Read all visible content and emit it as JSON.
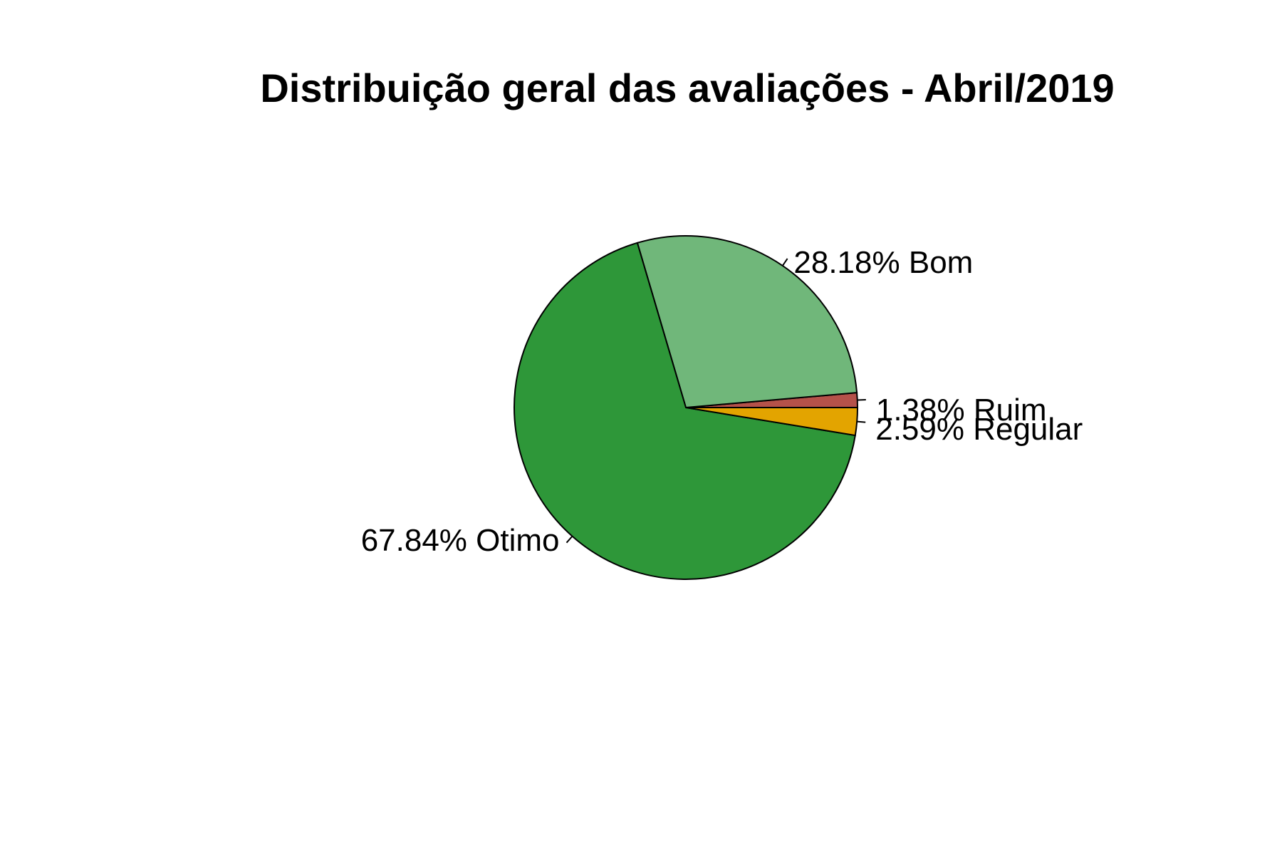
{
  "chart_data": {
    "type": "pie",
    "title": "Distribuição geral das avaliações - Abril/2019",
    "slices": [
      {
        "label": "Ruim",
        "value": 1.38,
        "text": "1.38% Ruim",
        "color": "#b5524a"
      },
      {
        "label": "Bom",
        "value": 28.18,
        "text": "28.18% Bom",
        "color": "#70b77a"
      },
      {
        "label": "Otimo",
        "value": 67.84,
        "text": "67.84% Otimo",
        "color": "#2e9739"
      },
      {
        "label": "Regular",
        "value": 2.59,
        "text": "2.59% Regular",
        "color": "#e3a400"
      }
    ],
    "start_angle_deg": 0,
    "direction": "counterclockwise",
    "grid": false,
    "legend": "none"
  }
}
